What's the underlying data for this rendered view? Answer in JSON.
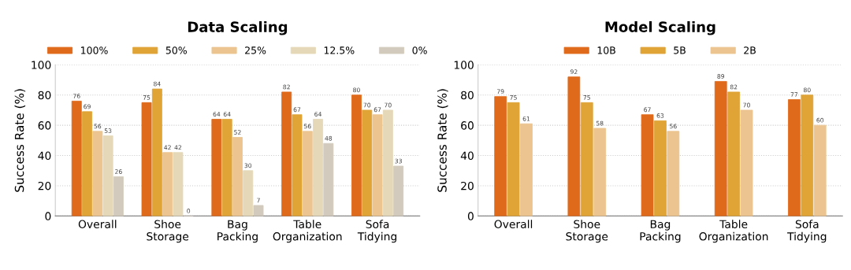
{
  "chart_data": [
    {
      "type": "bar",
      "title": "Data Scaling",
      "ylabel": "Success Rate (%)",
      "categories": [
        "Overall",
        "Shoe\nStorage",
        "Bag\nPacking",
        "Table\nOrganization",
        "Sofa\nTidying"
      ],
      "ylim": [
        0,
        100
      ],
      "yticks": [
        0,
        20,
        40,
        60,
        80,
        100
      ],
      "grid": "y",
      "legend": "top",
      "data_labels": true,
      "series": [
        {
          "name": "100%",
          "color": "#e06a1b",
          "values": [
            76,
            75,
            64,
            82,
            80
          ]
        },
        {
          "name": "50%",
          "color": "#e0a436",
          "values": [
            69,
            84,
            64,
            67,
            70
          ]
        },
        {
          "name": "25%",
          "color": "#ecc48f",
          "values": [
            56,
            42,
            52,
            56,
            67
          ]
        },
        {
          "name": "12.5%",
          "color": "#e5d8b8",
          "values": [
            53,
            42,
            30,
            64,
            70
          ]
        },
        {
          "name": "0%",
          "color": "#d2cbbd",
          "values": [
            26,
            0,
            7,
            48,
            33
          ]
        }
      ]
    },
    {
      "type": "bar",
      "title": "Model Scaling",
      "ylabel": "Success Rate (%)",
      "categories": [
        "Overall",
        "Shoe\nStorage",
        "Bag\nPacking",
        "Table\nOrganization",
        "Sofa\nTidying"
      ],
      "ylim": [
        0,
        100
      ],
      "yticks": [
        0,
        20,
        40,
        60,
        80,
        100
      ],
      "grid": "y",
      "legend": "top",
      "data_labels": true,
      "series": [
        {
          "name": "10B",
          "color": "#e06a1b",
          "values": [
            79,
            92,
            67,
            89,
            77
          ]
        },
        {
          "name": "5B",
          "color": "#e0a436",
          "values": [
            75,
            75,
            63,
            82,
            80
          ]
        },
        {
          "name": "2B",
          "color": "#ecc48f",
          "values": [
            61,
            58,
            56,
            70,
            60
          ]
        }
      ]
    }
  ]
}
